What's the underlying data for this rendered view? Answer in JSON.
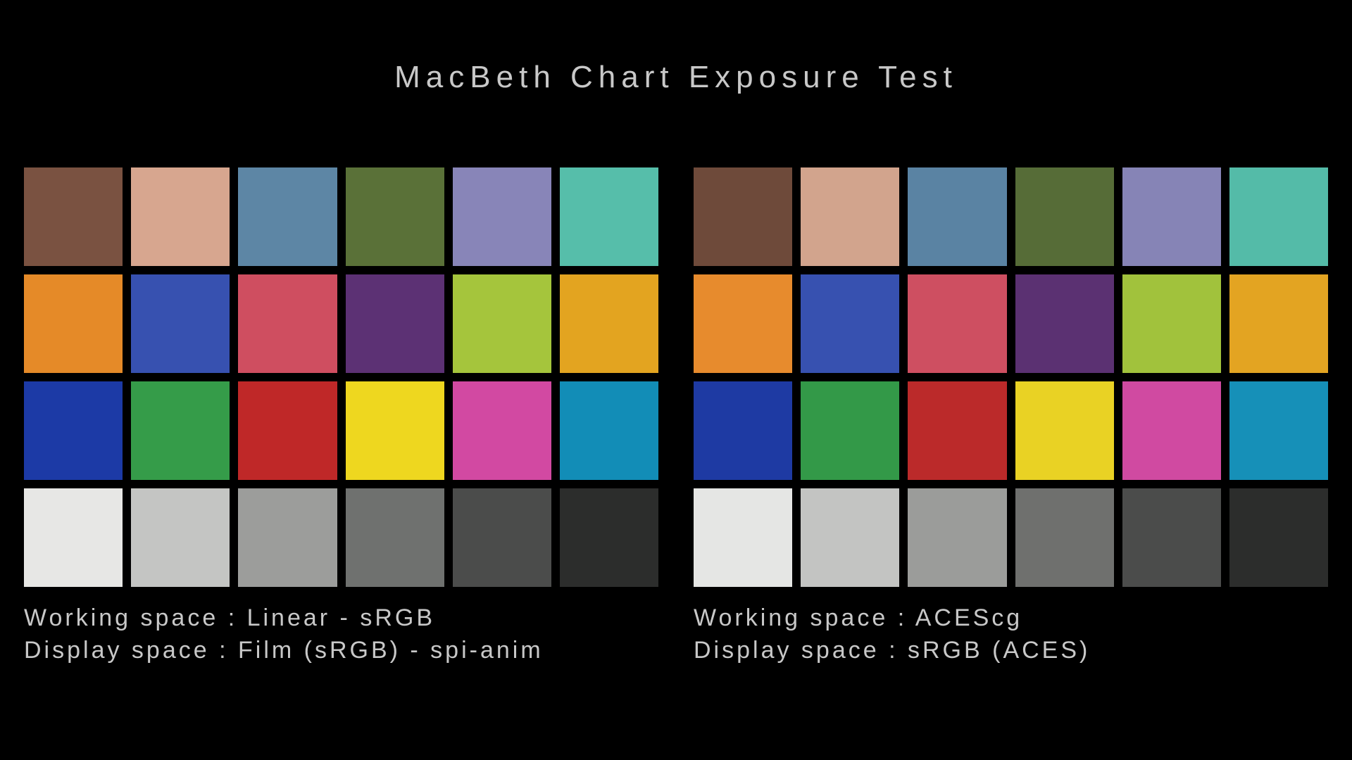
{
  "title": "MacBeth Chart Exposure Test",
  "background_color": "#000000",
  "text_color": "#c8c8c8",
  "title_fontsize": 44,
  "title_letter_spacing": 8,
  "caption_fontsize": 34,
  "caption_letter_spacing": 4,
  "swatch_gap": 12,
  "swatch_height": 140,
  "grid_columns": 6,
  "grid_rows": 4,
  "charts": [
    {
      "working_space_label": "Working space : Linear - sRGB",
      "display_space_label": "Display space : Film (sRGB) - spi-anim",
      "swatches": [
        "#7a5241",
        "#d7a68f",
        "#5d86a5",
        "#5a7138",
        "#8885b8",
        "#56beaa",
        "#e58a28",
        "#3751b0",
        "#cf4e60",
        "#5c3174",
        "#a5c53c",
        "#e3a420",
        "#1c3aa6",
        "#359c49",
        "#bf2828",
        "#eed71f",
        "#d249a2",
        "#128db7",
        "#e7e7e5",
        "#c4c5c3",
        "#9c9d9b",
        "#6f716f",
        "#4b4c4b",
        "#2c2d2c"
      ]
    },
    {
      "working_space_label": "Working space : ACEScg",
      "display_space_label": "Display space : sRGB (ACES)",
      "swatches": [
        "#6e4a3a",
        "#d2a48d",
        "#5a83a3",
        "#566c37",
        "#8684b6",
        "#54bba8",
        "#e78b2d",
        "#3751b0",
        "#ce4f61",
        "#5b3172",
        "#a1c23c",
        "#e3a422",
        "#1e3aa3",
        "#339948",
        "#bb2a2a",
        "#e9d224",
        "#d04aa1",
        "#1690b8",
        "#e5e6e4",
        "#c3c4c2",
        "#9b9c9a",
        "#6f706e",
        "#4b4c4b",
        "#2c2d2c"
      ]
    }
  ]
}
